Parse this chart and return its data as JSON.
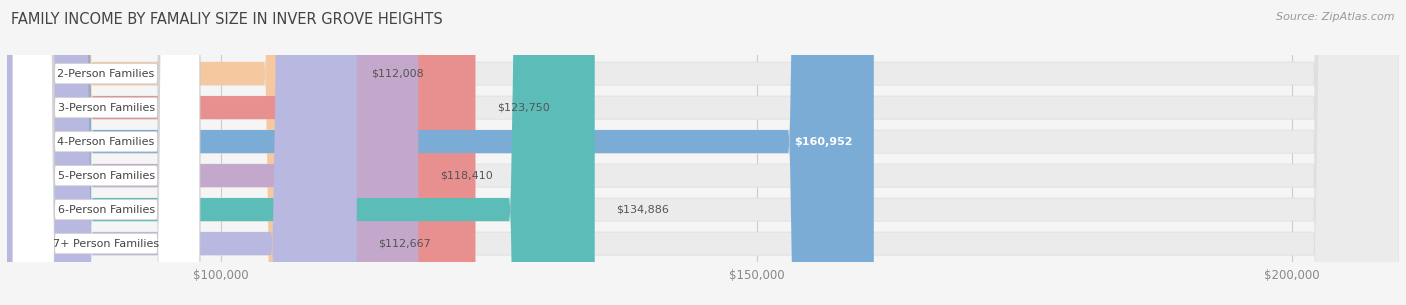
{
  "title": "FAMILY INCOME BY FAMALIY SIZE IN INVER GROVE HEIGHTS",
  "source": "Source: ZipAtlas.com",
  "categories": [
    "2-Person Families",
    "3-Person Families",
    "4-Person Families",
    "5-Person Families",
    "6-Person Families",
    "7+ Person Families"
  ],
  "values": [
    112008,
    123750,
    160952,
    118410,
    134886,
    112667
  ],
  "bar_colors": [
    "#f5c8a0",
    "#e89090",
    "#7aacd6",
    "#c4a8cc",
    "#5bbcb8",
    "#b8b8e0"
  ],
  "value_labels": [
    "$112,008",
    "$123,750",
    "$160,952",
    "$118,410",
    "$134,886",
    "$112,667"
  ],
  "label_inside_bar": [
    false,
    false,
    true,
    false,
    false,
    false
  ],
  "x_min": 80000,
  "x_max": 210000,
  "x_ticks": [
    100000,
    150000,
    200000
  ],
  "x_tick_labels": [
    "$100,000",
    "$150,000",
    "$200,000"
  ],
  "background_color": "#f5f5f5",
  "bar_bg_color": "#ebebeb",
  "title_fontsize": 10.5,
  "source_fontsize": 8,
  "label_fontsize": 8,
  "tick_fontsize": 8.5
}
